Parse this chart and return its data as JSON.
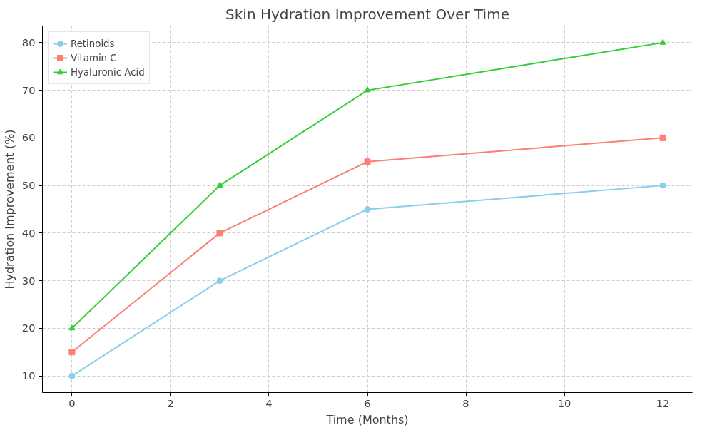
{
  "chart_data": {
    "type": "line",
    "title": "Skin Hydration Improvement Over Time",
    "xlabel": "Time (Months)",
    "ylabel": "Hydration Improvement (%)",
    "x": [
      0,
      3,
      6,
      12
    ],
    "series": [
      {
        "name": "Retinoids",
        "color": "#87ceeb",
        "values": [
          10,
          30,
          45,
          50
        ],
        "marker": "circle"
      },
      {
        "name": "Vitamin C",
        "color": "#fa8072",
        "values": [
          15,
          40,
          55,
          60
        ],
        "marker": "square"
      },
      {
        "name": "Hyaluronic Acid",
        "color": "#32cd32",
        "values": [
          20,
          50,
          70,
          80
        ],
        "marker": "triangle"
      }
    ],
    "xlim": [
      -0.6,
      12.6
    ],
    "ylim": [
      6.5,
      83.5
    ],
    "xticks": [
      0,
      2,
      4,
      6,
      8,
      10,
      12
    ],
    "yticks": [
      10,
      20,
      30,
      40,
      50,
      60,
      70,
      80
    ],
    "grid": true,
    "legend": "top left",
    "line_style": "solid"
  }
}
